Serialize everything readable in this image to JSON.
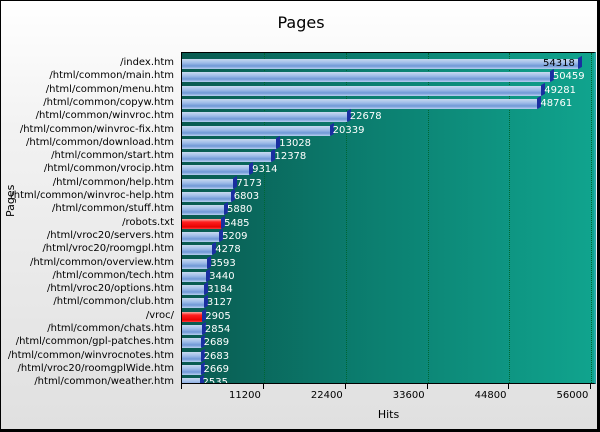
{
  "chart_data": {
    "type": "bar",
    "orientation": "horizontal",
    "title": "Pages",
    "xlabel": "Hits",
    "ylabel": "Pages",
    "xlim": [
      0,
      56500
    ],
    "x_ticks": [
      11200,
      22400,
      33600,
      44800,
      56000
    ],
    "grid": true,
    "legend": null,
    "categories": [
      "/index.htm",
      "/html/common/main.htm",
      "/html/common/menu.htm",
      "/html/common/copyw.htm",
      "/html/common/winvroc.htm",
      "/html/common/winvroc-fix.htm",
      "/html/common/download.htm",
      "/html/common/start.htm",
      "/html/common/vrocip.htm",
      "/html/common/help.htm",
      "/html/common/winvroc-help.htm",
      "/html/common/stuff.htm",
      "/robots.txt",
      "/html/vroc20/servers.htm",
      "/html/vroc20/roomgpl.htm",
      "/html/common/overview.htm",
      "/html/common/tech.htm",
      "/html/vroc20/options.htm",
      "/html/common/club.htm",
      "/vroc/",
      "/html/common/chats.htm",
      "/html/common/gpl-patches.htm",
      "/html/common/winvrocnotes.htm",
      "/html/vroc20/roomgplWide.htm",
      "/html/common/weather.htm"
    ],
    "values": [
      54318,
      50459,
      49281,
      48761,
      22678,
      20339,
      13028,
      12378,
      9314,
      7173,
      6803,
      5880,
      5485,
      5209,
      4278,
      3593,
      3440,
      3184,
      3127,
      2905,
      2854,
      2689,
      2683,
      2669,
      2535
    ],
    "highlighted": [
      "/robots.txt",
      "/vroc/"
    ],
    "colors": {
      "bar": "#8fb0e4",
      "bar_highlight": "#ff0000",
      "bar_cap": "#1a2fa0",
      "plot_bg_left": "#0a5a50",
      "plot_bg_right": "#10a48e"
    }
  }
}
